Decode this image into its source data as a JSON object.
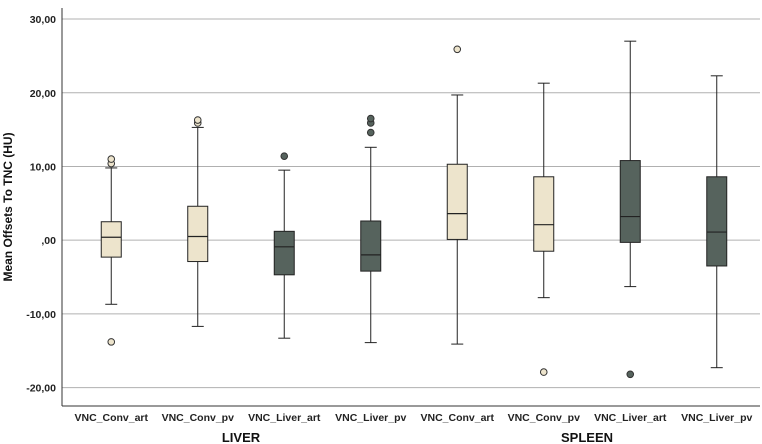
{
  "chart_data": {
    "type": "boxplot",
    "ylabel": "Mean Offsets To TNC (HU)",
    "ylim": [
      -22.5,
      31.5
    ],
    "yticks": [
      -20,
      -10,
      0,
      10,
      20,
      30
    ],
    "ytick_labels": [
      "-20,00",
      "-10,00",
      ",00",
      "10,00",
      "20,00",
      "30,00"
    ],
    "grid": true,
    "groups": [
      {
        "name": "LIVER",
        "categories": [
          0,
          1,
          2,
          3
        ]
      },
      {
        "name": "SPLEEN",
        "categories": [
          4,
          5,
          6,
          7
        ]
      }
    ],
    "categories": [
      "VNC_Conv_art",
      "VNC_Conv_pv",
      "VNC_Liver_art",
      "VNC_Liver_pv",
      "VNC_Conv_art",
      "VNC_Conv_pv",
      "VNC_Liver_art",
      "VNC_Liver_pv"
    ],
    "colors": {
      "conv": "#ede4cc",
      "liver": "#56635d",
      "outlier_conv": "#ede4cc",
      "outlier_liver": "#56635d"
    },
    "series": [
      {
        "name": "LIVER VNC_Conv_art",
        "color_key": "conv",
        "min": -8.7,
        "q1": -2.3,
        "median": 0.4,
        "q3": 2.5,
        "max": 9.8,
        "outliers": [
          10.4,
          11.0,
          -13.8
        ]
      },
      {
        "name": "LIVER VNC_Conv_pv",
        "color_key": "conv",
        "min": -11.7,
        "q1": -2.9,
        "median": 0.5,
        "q3": 4.6,
        "max": 15.3,
        "outliers": [
          15.9,
          16.3
        ]
      },
      {
        "name": "LIVER VNC_Liver_art",
        "color_key": "liver",
        "min": -13.3,
        "q1": -4.7,
        "median": -0.9,
        "q3": 1.2,
        "max": 9.5,
        "outliers": [
          11.4
        ]
      },
      {
        "name": "LIVER VNC_Liver_pv",
        "color_key": "liver",
        "min": -13.9,
        "q1": -4.2,
        "median": -2.0,
        "q3": 2.6,
        "max": 12.6,
        "outliers": [
          14.6,
          15.9,
          16.5
        ]
      },
      {
        "name": "SPLEEN VNC_Conv_art",
        "color_key": "conv",
        "min": -14.1,
        "q1": 0.1,
        "median": 3.6,
        "q3": 10.3,
        "max": 19.7,
        "outliers": [
          25.9
        ]
      },
      {
        "name": "SPLEEN VNC_Conv_pv",
        "color_key": "conv",
        "min": -7.8,
        "q1": -1.5,
        "median": 2.1,
        "q3": 8.6,
        "max": 21.3,
        "outliers": [
          -17.9
        ]
      },
      {
        "name": "SPLEEN VNC_Liver_art",
        "color_key": "liver",
        "min": -6.3,
        "q1": -0.3,
        "median": 3.2,
        "q3": 10.8,
        "max": 27.0,
        "outliers": [
          -18.2
        ]
      },
      {
        "name": "SPLEEN VNC_Liver_pv",
        "color_key": "liver",
        "min": -17.3,
        "q1": -3.5,
        "median": 1.1,
        "q3": 8.6,
        "max": 22.3,
        "outliers": []
      }
    ]
  }
}
